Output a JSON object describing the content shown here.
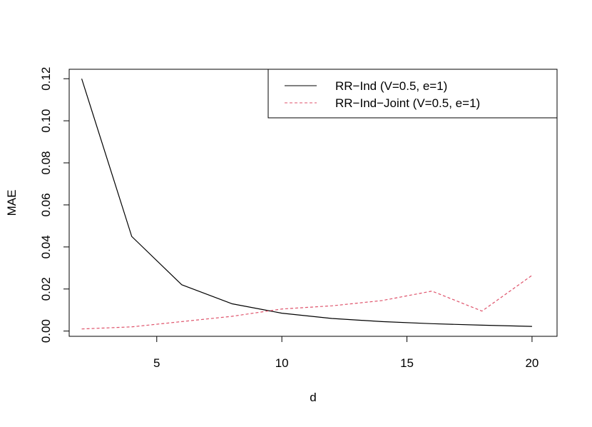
{
  "chart_data": {
    "type": "line",
    "xlabel": "d",
    "ylabel": "MAE",
    "xlim": [
      1.5,
      21
    ],
    "ylim": [
      -0.0025,
      0.1245
    ],
    "x_ticks": [
      {
        "value": 5,
        "label": "5"
      },
      {
        "value": 10,
        "label": "10"
      },
      {
        "value": 15,
        "label": "15"
      },
      {
        "value": 20,
        "label": "20"
      }
    ],
    "y_ticks": [
      {
        "value": 0.0,
        "label": "0.00"
      },
      {
        "value": 0.02,
        "label": "0.02"
      },
      {
        "value": 0.04,
        "label": "0.04"
      },
      {
        "value": 0.06,
        "label": "0.06"
      },
      {
        "value": 0.08,
        "label": "0.08"
      },
      {
        "value": 0.1,
        "label": "0.10"
      },
      {
        "value": 0.12,
        "label": "0.12"
      }
    ],
    "x": [
      2,
      4,
      6,
      8,
      10,
      12,
      14,
      16,
      18,
      20
    ],
    "series": [
      {
        "name": "RR−Ind (V=0.5, e=1)",
        "color": "#000000",
        "dash": "solid",
        "values": [
          0.12,
          0.045,
          0.022,
          0.013,
          0.0085,
          0.006,
          0.0045,
          0.0035,
          0.0028,
          0.0022
        ]
      },
      {
        "name": "RR−Ind−Joint (V=0.5, e=1)",
        "color": "#DF536B",
        "dash": "dashed",
        "values": [
          0.001,
          0.002,
          0.0045,
          0.007,
          0.0105,
          0.012,
          0.0145,
          0.019,
          0.0095,
          0.0265
        ]
      }
    ],
    "legend": {
      "position": "top-right"
    },
    "grid": false
  }
}
